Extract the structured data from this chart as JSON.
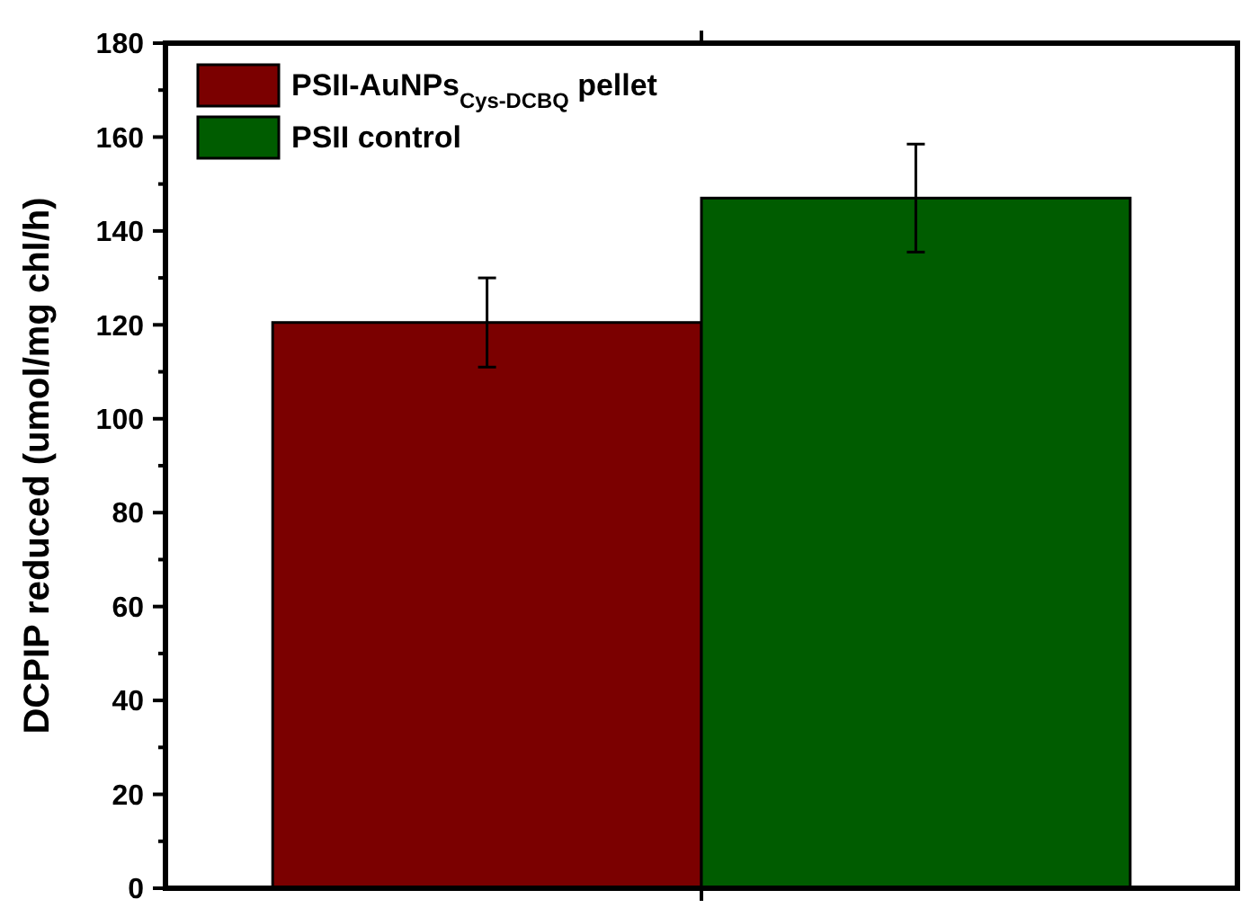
{
  "chart_data": {
    "type": "bar",
    "categories": [
      null
    ],
    "ylabel": "DCPIP reduced (umol/mg chl/h)",
    "ylim": [
      0,
      180
    ],
    "yticks": [
      0,
      20,
      40,
      60,
      80,
      100,
      120,
      140,
      160,
      180
    ],
    "legend": "top left",
    "series": [
      {
        "name": "PSII-AuNPs$_{Cys-DCBQ}$ pellet",
        "color": "#7b0000",
        "values": [
          120.5
        ],
        "errors": [
          9.5
        ]
      },
      {
        "name": "PSII control",
        "color": "#005c00",
        "values": [
          147
        ],
        "errors": [
          11.5
        ]
      }
    ]
  }
}
